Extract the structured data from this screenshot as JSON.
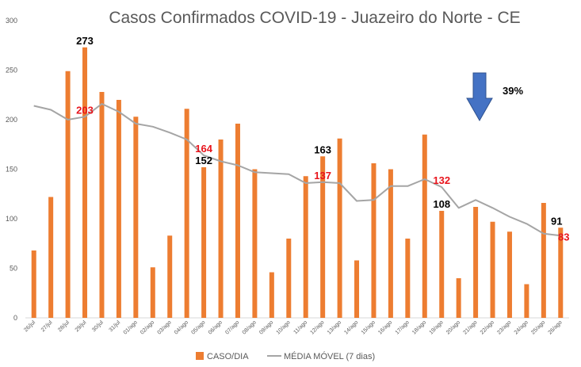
{
  "chart_data": {
    "type": "bar",
    "title": "Casos Confirmados COVID-19 - Juazeiro do Norte - CE",
    "categories": [
      "26/jul",
      "27/jul",
      "28/jul",
      "29/jul",
      "30/jul",
      "31/jul",
      "01/ago",
      "02/ago",
      "03/ago",
      "04/ago",
      "05/ago",
      "06/ago",
      "07/ago",
      "08/ago",
      "09/ago",
      "10/ago",
      "11/ago",
      "12/ago",
      "13/ago",
      "14/ago",
      "15/ago",
      "16/ago",
      "17/ago",
      "18/ago",
      "19/ago",
      "20/ago",
      "21/ago",
      "22/ago",
      "23/ago",
      "24/ago",
      "25/ago",
      "26/ago"
    ],
    "series": [
      {
        "name": "CASO/DIA",
        "type": "bar",
        "color": "#ed7d31",
        "values": [
          68,
          122,
          249,
          273,
          228,
          220,
          203,
          51,
          83,
          211,
          152,
          180,
          196,
          150,
          46,
          80,
          143,
          163,
          181,
          58,
          156,
          150,
          80,
          185,
          108,
          40,
          112,
          97,
          87,
          34,
          116,
          91
        ]
      },
      {
        "name": "MÉDIA MÓVEL (7 dias)",
        "type": "line",
        "color": "#a5a5a5",
        "values": [
          214,
          210,
          200,
          203,
          216,
          208,
          196,
          193,
          187,
          180,
          164,
          158,
          154,
          147,
          146,
          145,
          136,
          137,
          136,
          118,
          119,
          133,
          133,
          140,
          132,
          111,
          119,
          111,
          102,
          95,
          85,
          83
        ]
      }
    ],
    "ylim": [
      0,
      300
    ],
    "yticks": [
      0,
      50,
      100,
      150,
      200,
      250,
      300
    ],
    "grid": false,
    "legend": "bottom",
    "annotations": [
      {
        "text": "273",
        "x": "29/jul",
        "y": 273,
        "color": "#000000"
      },
      {
        "text": "203",
        "x": "29/jul",
        "y": 203,
        "color": "#e8141c"
      },
      {
        "text": "164",
        "x": "05/ago",
        "y": 164,
        "color": "#e8141c"
      },
      {
        "text": "152",
        "x": "05/ago",
        "y": 152,
        "color": "#000000"
      },
      {
        "text": "163",
        "x": "12/ago",
        "y": 163,
        "color": "#000000"
      },
      {
        "text": "137",
        "x": "12/ago",
        "y": 137,
        "color": "#e8141c"
      },
      {
        "text": "132",
        "x": "19/ago",
        "y": 132,
        "color": "#e8141c"
      },
      {
        "text": "108",
        "x": "19/ago",
        "y": 108,
        "color": "#000000"
      },
      {
        "text": "91",
        "x": "26/ago",
        "y": 91,
        "color": "#000000"
      },
      {
        "text": "83",
        "x": "26/ago",
        "y": 83,
        "color": "#e8141c"
      }
    ],
    "callout": {
      "text": "39%",
      "icon": "down-arrow-icon",
      "arrow_color": "#4472c4"
    }
  }
}
